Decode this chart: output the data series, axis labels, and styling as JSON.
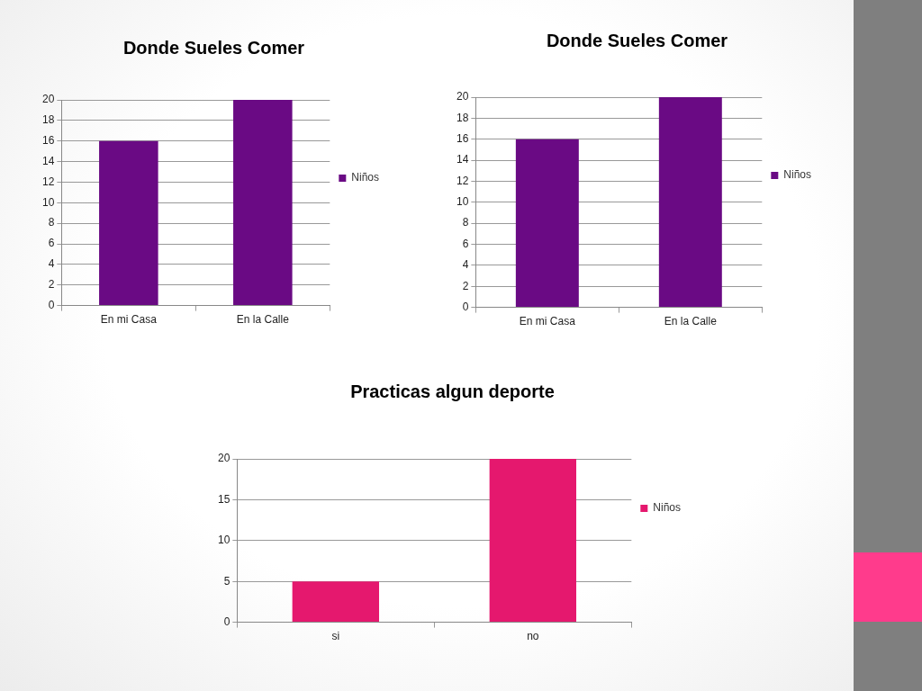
{
  "chart_data": [
    {
      "type": "bar",
      "title": "Donde Sueles Comer",
      "categories": [
        "En mi Casa",
        "En la Calle"
      ],
      "series": [
        {
          "name": "Niños",
          "color": "#6a0a84",
          "values": [
            16,
            20
          ]
        }
      ],
      "ylim": [
        0,
        20
      ],
      "yticks": [
        0,
        2,
        4,
        6,
        8,
        10,
        12,
        14,
        16,
        18,
        20
      ],
      "grid": "y",
      "legend": "right"
    },
    {
      "type": "bar",
      "title": "Donde Sueles Comer",
      "categories": [
        "En mi Casa",
        "En la Calle"
      ],
      "series": [
        {
          "name": "Niños",
          "color": "#6a0a84",
          "values": [
            16,
            20
          ]
        }
      ],
      "ylim": [
        0,
        20
      ],
      "yticks": [
        0,
        2,
        4,
        6,
        8,
        10,
        12,
        14,
        16,
        18,
        20
      ],
      "grid": "y",
      "legend": "right"
    },
    {
      "type": "bar",
      "title": "Practicas algun deporte",
      "categories": [
        "si",
        "no"
      ],
      "series": [
        {
          "name": "Niños",
          "color": "#e5186e",
          "values": [
            5,
            20
          ]
        }
      ],
      "ylim": [
        0,
        20
      ],
      "yticks": [
        0,
        5,
        10,
        15,
        20
      ],
      "grid": "y",
      "legend": "right"
    }
  ]
}
